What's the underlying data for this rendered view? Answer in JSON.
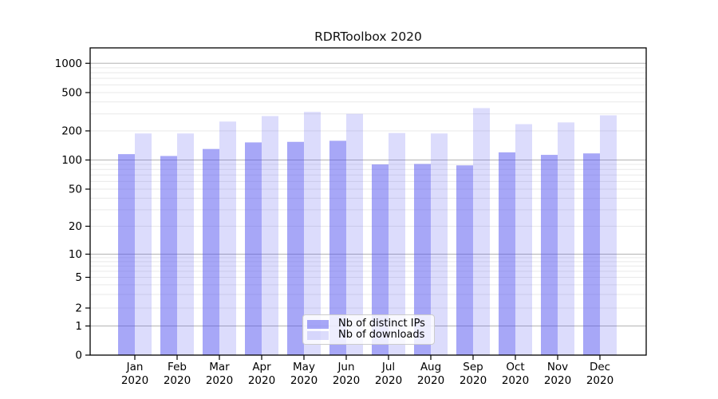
{
  "chart_data": {
    "type": "bar",
    "title": "RDRToolbox 2020",
    "categories": [
      "Jan",
      "Feb",
      "Mar",
      "Apr",
      "May",
      "Jun",
      "Jul",
      "Aug",
      "Sep",
      "Oct",
      "Nov",
      "Dec"
    ],
    "category_year": "2020",
    "series": [
      {
        "name": "Nb of distinct IPs",
        "color": "#5050f0",
        "opacity": 0.5,
        "values": [
          115,
          110,
          130,
          152,
          154,
          158,
          90,
          91,
          88,
          120,
          113,
          117
        ]
      },
      {
        "name": "Nb of downloads",
        "color": "#5050f0",
        "opacity": 0.2,
        "values": [
          188,
          188,
          250,
          285,
          315,
          300,
          190,
          188,
          345,
          235,
          245,
          290
        ]
      }
    ],
    "yscale": "symlog",
    "ylim": [
      0,
      1400
    ],
    "yticks": [
      0,
      1,
      2,
      5,
      10,
      20,
      50,
      100,
      200,
      500,
      1000
    ],
    "grid": {
      "major_gridline_color": "#b3b3b3",
      "minor_gridline_color": "#e9e9e9",
      "major_gridlines_at": [
        1,
        10,
        100,
        1000
      ]
    },
    "legend": {
      "position": "lower-center"
    },
    "axis_color": "#000000",
    "background_color": "#ffffff"
  }
}
